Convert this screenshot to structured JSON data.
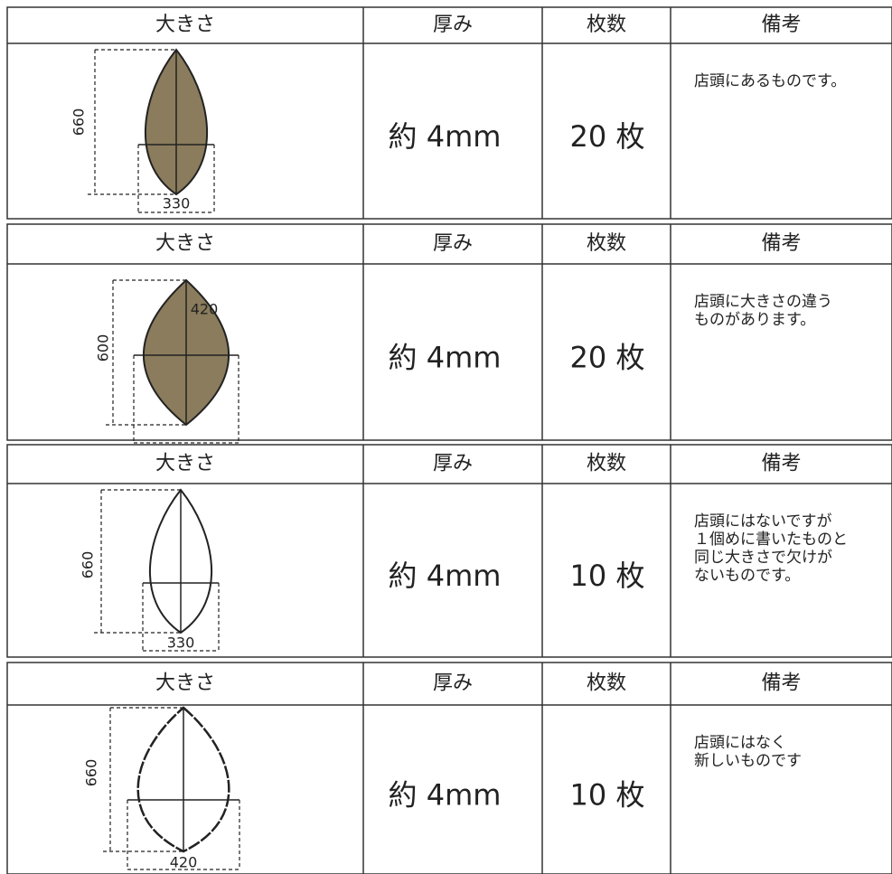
{
  "tables": [
    {
      "header": [
        "大きさ",
        "厚み",
        "枚数",
        "備考"
      ],
      "size": {
        "height": 660,
        "width": 330
      },
      "thickness": "約 4mm",
      "count": "20 枚",
      "note": [
        "店頭にあるものです。"
      ]
    },
    {
      "header": [
        "大きさ",
        "厚み",
        "枚数",
        "備考"
      ],
      "size": {
        "height": 600,
        "width": 420
      },
      "thickness": "約 4mm",
      "count": "20 枚",
      "note": [
        "店頭に大きさの違う",
        "ものがあります。"
      ]
    },
    {
      "header": [
        "大きさ",
        "厚み",
        "枚数",
        "備考"
      ],
      "size": {
        "height": 660,
        "width": 330
      },
      "thickness": "約 4mm",
      "count": "10 枚",
      "note": [
        "店頭にはないですが",
        "１個めに書いたものと",
        "同じ大きさで欠けが",
        "ないものです。"
      ]
    },
    {
      "header": [
        "大きさ",
        "厚み",
        "枚数",
        "備考"
      ],
      "size": {
        "height": 660,
        "width": 420
      },
      "thickness": "約 4mm",
      "count": "10 枚",
      "note": [
        "店頭にはなく",
        "新しいものです"
      ]
    }
  ]
}
